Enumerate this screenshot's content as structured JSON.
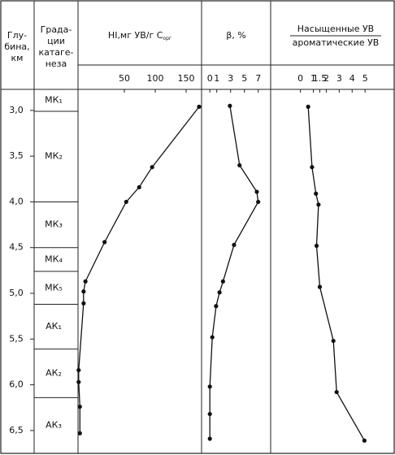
{
  "depth_axis": {
    "title": [
      "Глу-",
      "бина,",
      "км"
    ],
    "ylim": [
      2.77,
      6.75
    ],
    "yticks": [
      {
        "value": 3,
        "label": "3,0"
      },
      {
        "value": 3.5,
        "label": "3,5"
      },
      {
        "value": 4,
        "label": "4,0"
      },
      {
        "value": 4.5,
        "label": "4,5"
      },
      {
        "value": 5,
        "label": "5,0"
      },
      {
        "value": 5.5,
        "label": "5,5"
      },
      {
        "value": 6,
        "label": "6,0"
      },
      {
        "value": 6.5,
        "label": "6,5"
      }
    ]
  },
  "zones": {
    "title": [
      "Града-",
      "ции",
      "катаге-",
      "неза"
    ],
    "labels": [
      "МК₁",
      "МК₂",
      "МК₃",
      "МК₄",
      "МК₅",
      "АК₁",
      "АК₂",
      "АК₃"
    ],
    "boundaries": [
      3.01,
      4.0,
      4.5,
      4.76,
      5.12,
      5.61,
      6.14
    ]
  },
  "chart_data": [
    {
      "type": "line",
      "title": "HI,мг УВ/г С",
      "title_sub": "орг",
      "xlim": [
        -25,
        175
      ],
      "xticks": [
        50,
        100,
        150
      ],
      "values": [
        171,
        95,
        74,
        53,
        18,
        -13,
        -16,
        -16,
        -24,
        -24,
        -22,
        -22
      ],
      "depth": [
        2.96,
        3.62,
        3.84,
        4.0,
        4.44,
        4.87,
        4.98,
        5.11,
        5.84,
        5.97,
        6.24,
        6.53
      ]
    },
    {
      "type": "line",
      "title": "β, %",
      "xlim": [
        -1.2,
        8.8
      ],
      "xticks": [
        0,
        1,
        3,
        5,
        7
      ],
      "values": [
        2.9,
        4.3,
        6.8,
        7.0,
        3.5,
        1.9,
        1.4,
        0.9,
        0.35,
        0,
        0,
        0
      ],
      "depth": [
        2.95,
        3.6,
        3.89,
        4.0,
        4.47,
        4.87,
        4.99,
        5.14,
        5.48,
        6.02,
        6.32,
        6.59
      ]
    },
    {
      "type": "line",
      "title": "Насыщенные УВ",
      "title_den": "ароматические УВ",
      "xlim": [
        -2.3,
        7.25
      ],
      "xticks": [
        0,
        1,
        1.5,
        2,
        3,
        4,
        5
      ],
      "values": [
        0.6,
        0.9,
        1.2,
        1.4,
        1.25,
        1.5,
        2.55,
        2.8,
        4.95
      ],
      "depth": [
        2.96,
        3.62,
        3.91,
        4.03,
        4.48,
        4.93,
        5.52,
        6.08,
        6.61
      ]
    }
  ]
}
